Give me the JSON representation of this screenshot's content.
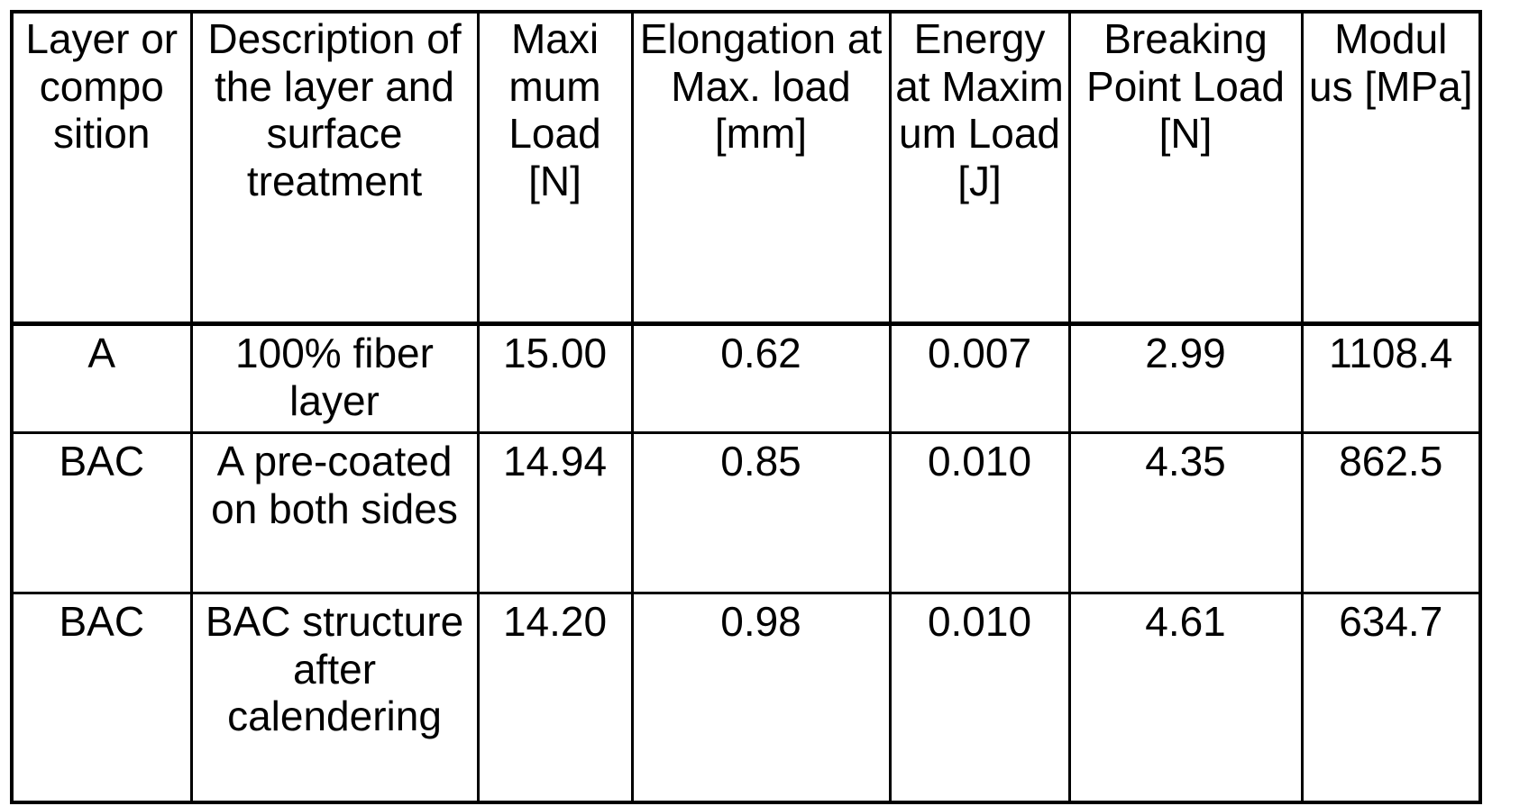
{
  "table": {
    "headers": [
      "Layer or compo sition",
      "Description of the layer and surface treatment",
      "Maxi mum Load [N]",
      "Elongation at Max. load [mm]",
      "Energy at Maxim um Load [J]",
      "Breaking Point Load [N]",
      "Modul us [MPa]"
    ],
    "rows": [
      [
        "A",
        "100% fiber layer",
        "15.00",
        "0.62",
        "0.007",
        "2.99",
        "1108.4"
      ],
      [
        "BAC",
        "A pre-coated on both sides",
        "14.94",
        "0.85",
        "0.010",
        "4.35",
        "862.5"
      ],
      [
        "BAC",
        "BAC structure after calendering",
        "14.20",
        "0.98",
        "0.010",
        "4.61",
        "634.7"
      ]
    ]
  }
}
